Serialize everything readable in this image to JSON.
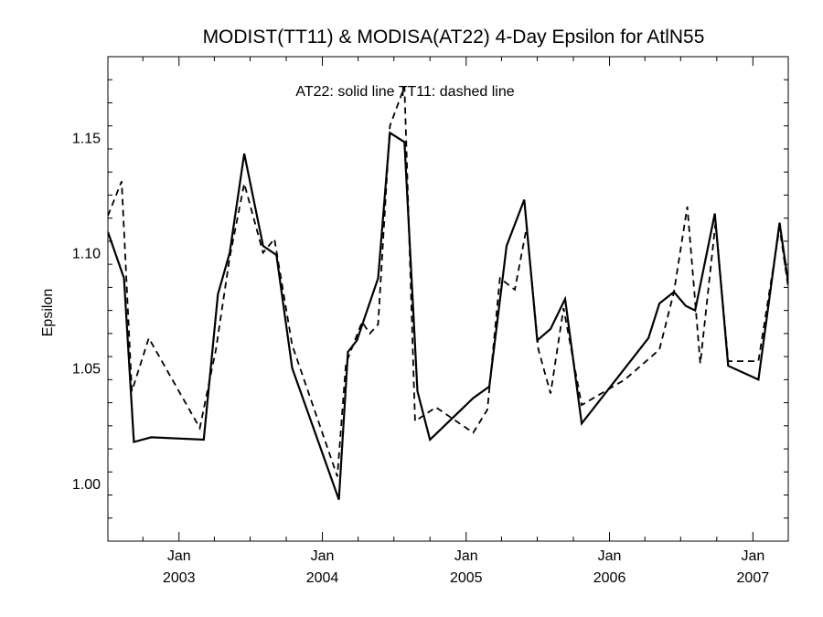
{
  "chart_data": {
    "type": "line",
    "title": "MODIST(TT11) & MODISA(AT22) 4-Day Epsilon for AtlN55",
    "ylabel": "Epsilon",
    "xlabel": "",
    "annotation": "AT22: solid line   TT11: dashed line",
    "xlim": [
      "2002-07-04",
      "2007-04-01"
    ],
    "ylim": [
      0.975,
      1.185
    ],
    "y_ticks": [
      "1.00",
      "1.05",
      "1.10",
      "1.15"
    ],
    "y_tick_values": [
      1.0,
      1.05,
      1.1,
      1.15
    ],
    "x_tick_months": [
      "Jan",
      "Jan",
      "Jan",
      "Jan",
      "Jan"
    ],
    "x_tick_years": [
      "2003",
      "2004",
      "2005",
      "2006",
      "2007"
    ],
    "x_tick_dates": [
      "2003-01-01",
      "2004-01-01",
      "2005-01-01",
      "2006-01-01",
      "2007-01-01"
    ],
    "grid": false,
    "series": [
      {
        "line_style": "solid",
        "points": [
          [
            "2002-07-04",
            1.109
          ],
          [
            "2002-08-14",
            1.089
          ],
          [
            "2002-09-08",
            1.018
          ],
          [
            "2002-10-22",
            1.02
          ],
          [
            "2003-03-05",
            1.019
          ],
          [
            "2003-04-10",
            1.082
          ],
          [
            "2003-05-10",
            1.1
          ],
          [
            "2003-06-16",
            1.143
          ],
          [
            "2003-08-03",
            1.103
          ],
          [
            "2003-09-06",
            1.099
          ],
          [
            "2003-10-16",
            1.05
          ],
          [
            "2004-02-12",
            0.993
          ],
          [
            "2004-03-06",
            1.057
          ],
          [
            "2004-03-29",
            1.062
          ],
          [
            "2004-05-22",
            1.089
          ],
          [
            "2004-06-21",
            1.152
          ],
          [
            "2004-07-28",
            1.148
          ],
          [
            "2004-08-30",
            1.04
          ],
          [
            "2004-10-01",
            1.019
          ],
          [
            "2005-01-19",
            1.037
          ],
          [
            "2005-03-01",
            1.042
          ],
          [
            "2005-04-14",
            1.103
          ],
          [
            "2005-05-29",
            1.123
          ],
          [
            "2005-07-01",
            1.062
          ],
          [
            "2005-08-04",
            1.067
          ],
          [
            "2005-09-10",
            1.08
          ],
          [
            "2005-10-22",
            1.026
          ],
          [
            "2006-04-10",
            1.063
          ],
          [
            "2006-05-08",
            1.078
          ],
          [
            "2006-06-14",
            1.083
          ],
          [
            "2006-07-14",
            1.077
          ],
          [
            "2006-08-07",
            1.075
          ],
          [
            "2006-09-26",
            1.117
          ],
          [
            "2006-10-30",
            1.051
          ],
          [
            "2007-01-15",
            1.045
          ],
          [
            "2007-03-10",
            1.113
          ],
          [
            "2007-04-01",
            1.087
          ]
        ]
      },
      {
        "line_style": "dashed",
        "points": [
          [
            "2002-07-04",
            1.116
          ],
          [
            "2002-08-08",
            1.131
          ],
          [
            "2002-09-03",
            1.04
          ],
          [
            "2002-10-16",
            1.063
          ],
          [
            "2003-02-23",
            1.024
          ],
          [
            "2003-04-05",
            1.058
          ],
          [
            "2003-05-10",
            1.098
          ],
          [
            "2003-06-16",
            1.13
          ],
          [
            "2003-08-03",
            1.1
          ],
          [
            "2003-09-01",
            1.106
          ],
          [
            "2003-10-16",
            1.06
          ],
          [
            "2004-02-08",
            1.003
          ],
          [
            "2004-03-01",
            1.052
          ],
          [
            "2004-04-11",
            1.07
          ],
          [
            "2004-05-01",
            1.065
          ],
          [
            "2004-05-22",
            1.069
          ],
          [
            "2004-06-21",
            1.155
          ],
          [
            "2004-07-28",
            1.172
          ],
          [
            "2004-08-24",
            1.027
          ],
          [
            "2004-10-16",
            1.033
          ],
          [
            "2005-01-19",
            1.022
          ],
          [
            "2005-02-24",
            1.032
          ],
          [
            "2005-03-28",
            1.089
          ],
          [
            "2005-05-05",
            1.084
          ],
          [
            "2005-06-04",
            1.111
          ],
          [
            "2005-07-04",
            1.058
          ],
          [
            "2005-08-04",
            1.039
          ],
          [
            "2005-09-06",
            1.076
          ],
          [
            "2005-10-22",
            1.034
          ],
          [
            "2006-02-09",
            1.045
          ],
          [
            "2006-05-08",
            1.058
          ],
          [
            "2006-06-14",
            1.083
          ],
          [
            "2006-07-18",
            1.12
          ],
          [
            "2006-08-20",
            1.052
          ],
          [
            "2006-09-28",
            1.113
          ],
          [
            "2006-10-30",
            1.053
          ],
          [
            "2007-01-15",
            1.053
          ],
          [
            "2007-03-10",
            1.111
          ],
          [
            "2007-04-01",
            1.085
          ]
        ]
      }
    ]
  }
}
